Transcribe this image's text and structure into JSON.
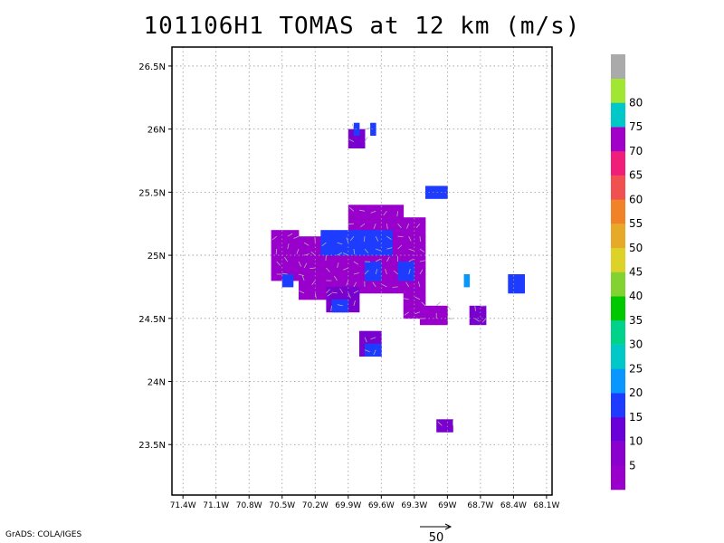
{
  "title": "101106H1 TOMAS at 12 km (m/s)",
  "footer": "GrADS: COLA/IGES",
  "axes": {
    "y_ticks": [
      "26.5N",
      "26N",
      "25.5N",
      "25N",
      "24.5N",
      "24N",
      "23.5N"
    ],
    "x_ticks": [
      "71.4W",
      "71.1W",
      "70.8W",
      "70.5W",
      "70.2W",
      "69.9W",
      "69.6W",
      "69.3W",
      "69W",
      "68.7W",
      "68.4W",
      "68.1W"
    ]
  },
  "colorbar": {
    "colors": [
      "#9900cc",
      "#8a00cc",
      "#6a00d8",
      "#1e3cff",
      "#0a96ff",
      "#00c8c8",
      "#00d28c",
      "#00c800",
      "#82d232",
      "#dcd228",
      "#e6aa28",
      "#f08228",
      "#f05050",
      "#f01e78",
      "#a000c8",
      "#00c8c8",
      "#a0e632",
      "#aaaaaa"
    ],
    "labels": [
      "5",
      "10",
      "15",
      "20",
      "25",
      "30",
      "35",
      "40",
      "45",
      "50",
      "55",
      "60",
      "65",
      "70",
      "75",
      "80"
    ]
  },
  "reference_vector": {
    "label": "50"
  },
  "chart_data": {
    "type": "heatmap",
    "title": "101106H1 TOMAS at 12 km (m/s)",
    "units": "m/s",
    "lon_range": [
      -71.5,
      -68.05
    ],
    "lat_range": [
      23.1,
      26.65
    ],
    "grid": true,
    "colorbar_levels": [
      5,
      10,
      15,
      20,
      25,
      30,
      35,
      40,
      45,
      50,
      55,
      60,
      65,
      70,
      75,
      80
    ],
    "wind_cells": {
      "cell_size_deg": 0.05,
      "columns": [
        "lon",
        "lat",
        "speed_class"
      ],
      "speed_class_legend": [
        "<5 m/s",
        "5-10 m/s",
        "10-15 m/s"
      ],
      "blocks": [
        {
          "lon": [
            -70.6,
            -70.35
          ],
          "lat": [
            24.8,
            25.2
          ],
          "class": 0
        },
        {
          "lon": [
            -70.35,
            -69.9
          ],
          "lat": [
            24.65,
            25.15
          ],
          "class": 0
        },
        {
          "lon": [
            -69.9,
            -69.4
          ],
          "lat": [
            24.7,
            25.4
          ],
          "class": 0
        },
        {
          "lon": [
            -69.4,
            -69.2
          ],
          "lat": [
            24.5,
            25.3
          ],
          "class": 0
        },
        {
          "lon": [
            -69.25,
            -69.0
          ],
          "lat": [
            24.45,
            24.6
          ],
          "class": 0
        },
        {
          "lon": [
            -70.1,
            -69.8
          ],
          "lat": [
            24.55,
            24.75
          ],
          "class": 1
        },
        {
          "lon": [
            -69.8,
            -69.6
          ],
          "lat": [
            24.2,
            24.4
          ],
          "class": 1
        },
        {
          "lon": [
            -69.9,
            -69.75
          ],
          "lat": [
            25.85,
            26.0
          ],
          "class": 1
        },
        {
          "lon": [
            -68.8,
            -68.65
          ],
          "lat": [
            24.45,
            24.6
          ],
          "class": 1
        },
        {
          "lon": [
            -69.1,
            -68.95
          ],
          "lat": [
            23.6,
            23.7
          ],
          "class": 1
        }
      ],
      "streaks": [
        {
          "lon": [
            -70.5,
            -70.4
          ],
          "lat": [
            24.75,
            24.85
          ],
          "class": 2
        },
        {
          "lon": [
            -70.15,
            -69.5
          ],
          "lat": [
            25.0,
            25.2
          ],
          "class": 2
        },
        {
          "lon": [
            -69.75,
            -69.6
          ],
          "lat": [
            24.8,
            24.95
          ],
          "class": 2
        },
        {
          "lon": [
            -69.45,
            -69.3
          ],
          "lat": [
            24.8,
            24.95
          ],
          "class": 2
        },
        {
          "lon": [
            -69.2,
            -69.0
          ],
          "lat": [
            25.45,
            25.55
          ],
          "class": 2
        },
        {
          "lon": [
            -70.05,
            -69.9
          ],
          "lat": [
            24.55,
            24.65
          ],
          "class": 2
        },
        {
          "lon": [
            -69.75,
            -69.6
          ],
          "lat": [
            24.2,
            24.3
          ],
          "class": 2
        },
        {
          "lon": [
            -69.85,
            -69.8
          ],
          "lat": [
            25.95,
            26.05
          ],
          "class": 2
        },
        {
          "lon": [
            -69.7,
            -69.65
          ],
          "lat": [
            25.95,
            26.05
          ],
          "class": 2
        },
        {
          "lon": [
            -68.45,
            -68.3
          ],
          "lat": [
            24.7,
            24.85
          ],
          "class": 2
        },
        {
          "lon": [
            -68.85,
            -68.8
          ],
          "lat": [
            24.75,
            24.85
          ],
          "class": 3
        }
      ]
    }
  }
}
